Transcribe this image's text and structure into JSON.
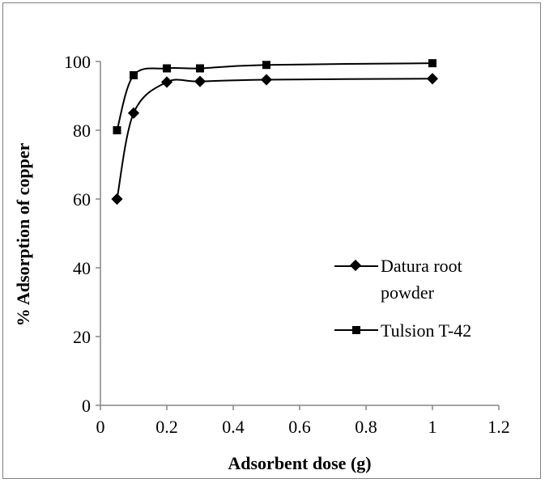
{
  "chart_data": {
    "type": "line",
    "title": "",
    "xlabel": "Adsorbent dose (g)",
    "ylabel": "% Adsorption of copper",
    "xlim": [
      0,
      1.2
    ],
    "ylim": [
      0,
      100
    ],
    "x_ticks": [
      "0",
      "0.2",
      "0.4",
      "0.6",
      "0.8",
      "1",
      "1.2"
    ],
    "y_ticks": [
      "0",
      "20",
      "40",
      "60",
      "80",
      "100"
    ],
    "grid": false,
    "legend_position": "right",
    "series": [
      {
        "name_lines": [
          "Datura root",
          "powder"
        ],
        "marker": "diamond",
        "color": "#000000",
        "x": [
          0.05,
          0.1,
          0.2,
          0.3,
          0.5,
          1.0
        ],
        "y": [
          60,
          85,
          94,
          94.2,
          94.7,
          95
        ]
      },
      {
        "name": "Tulsion T-42",
        "marker": "square",
        "color": "#000000",
        "x": [
          0.05,
          0.1,
          0.2,
          0.3,
          0.5,
          1.0
        ],
        "y": [
          80,
          96,
          98,
          98,
          99,
          99.5
        ]
      }
    ]
  }
}
